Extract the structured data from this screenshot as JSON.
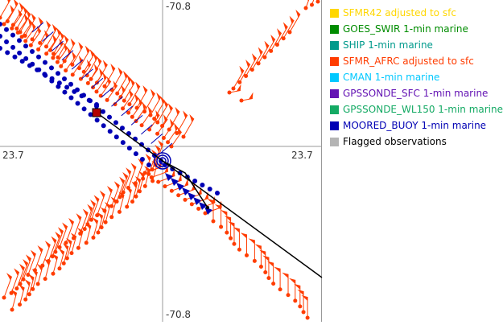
{
  "axes": {
    "lon_top": "-70.8",
    "lon_bottom": "-70.8",
    "lat_left": "23.7",
    "lat_right": "23.7"
  },
  "legend": [
    {
      "label": "SFMR42 adjusted to sfc",
      "color": "#ffd700"
    },
    {
      "label": "GOES_SWIR 1-min marine",
      "color": "#008c00"
    },
    {
      "label": "SHIP 1-min marine",
      "color": "#009a8c"
    },
    {
      "label": "SFMR_AFRC adjusted to sfc",
      "color": "#ff3c00"
    },
    {
      "label": "CMAN 1-min marine",
      "color": "#00c8ff"
    },
    {
      "label": "GPSSONDE_SFC 1-min marine",
      "color": "#6414b4"
    },
    {
      "label": "GPSSONDE_WL150 1-min marine",
      "color": "#14aa64"
    },
    {
      "label": "MOORED_BUOY 1-min marine",
      "color": "#0000b4"
    },
    {
      "label": "Flagged observations",
      "color": "#b4b4b4",
      "text_color": "#000000"
    }
  ]
}
